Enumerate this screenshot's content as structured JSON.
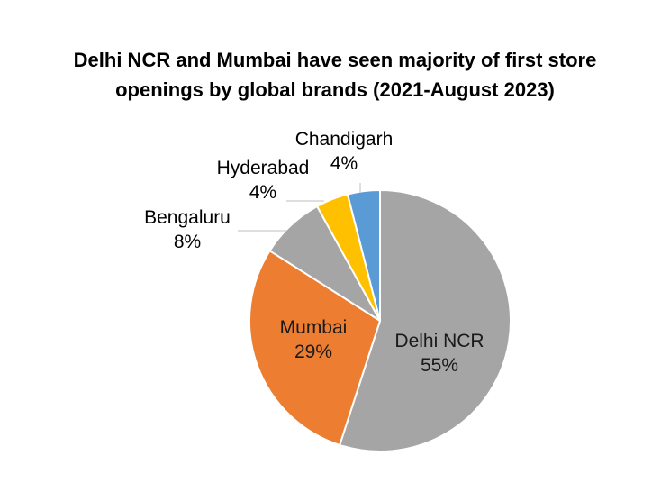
{
  "chart_data": {
    "type": "pie",
    "title_lines": [
      "Delhi NCR and Mumbai have seen majority of first store",
      "openings by global brands (2021-August 2023)"
    ],
    "slices": [
      {
        "name": "Delhi NCR",
        "value": 55,
        "label": "55%",
        "color": "#a5a5a5"
      },
      {
        "name": "Mumbai",
        "value": 29,
        "label": "29%",
        "color": "#ed7d31"
      },
      {
        "name": "Bengaluru",
        "value": 8,
        "label": "8%",
        "color": "#a5a5a5"
      },
      {
        "name": "Hyderabad",
        "value": 4,
        "label": "4%",
        "color": "#ffc000"
      },
      {
        "name": "Chandigarh",
        "value": 4,
        "label": "4%",
        "color": "#5b9bd5"
      }
    ],
    "start": "12 o'clock",
    "direction": "clockwise",
    "slice_border_color": "#ffffff",
    "leader_line_color": "#bfbfbf"
  }
}
